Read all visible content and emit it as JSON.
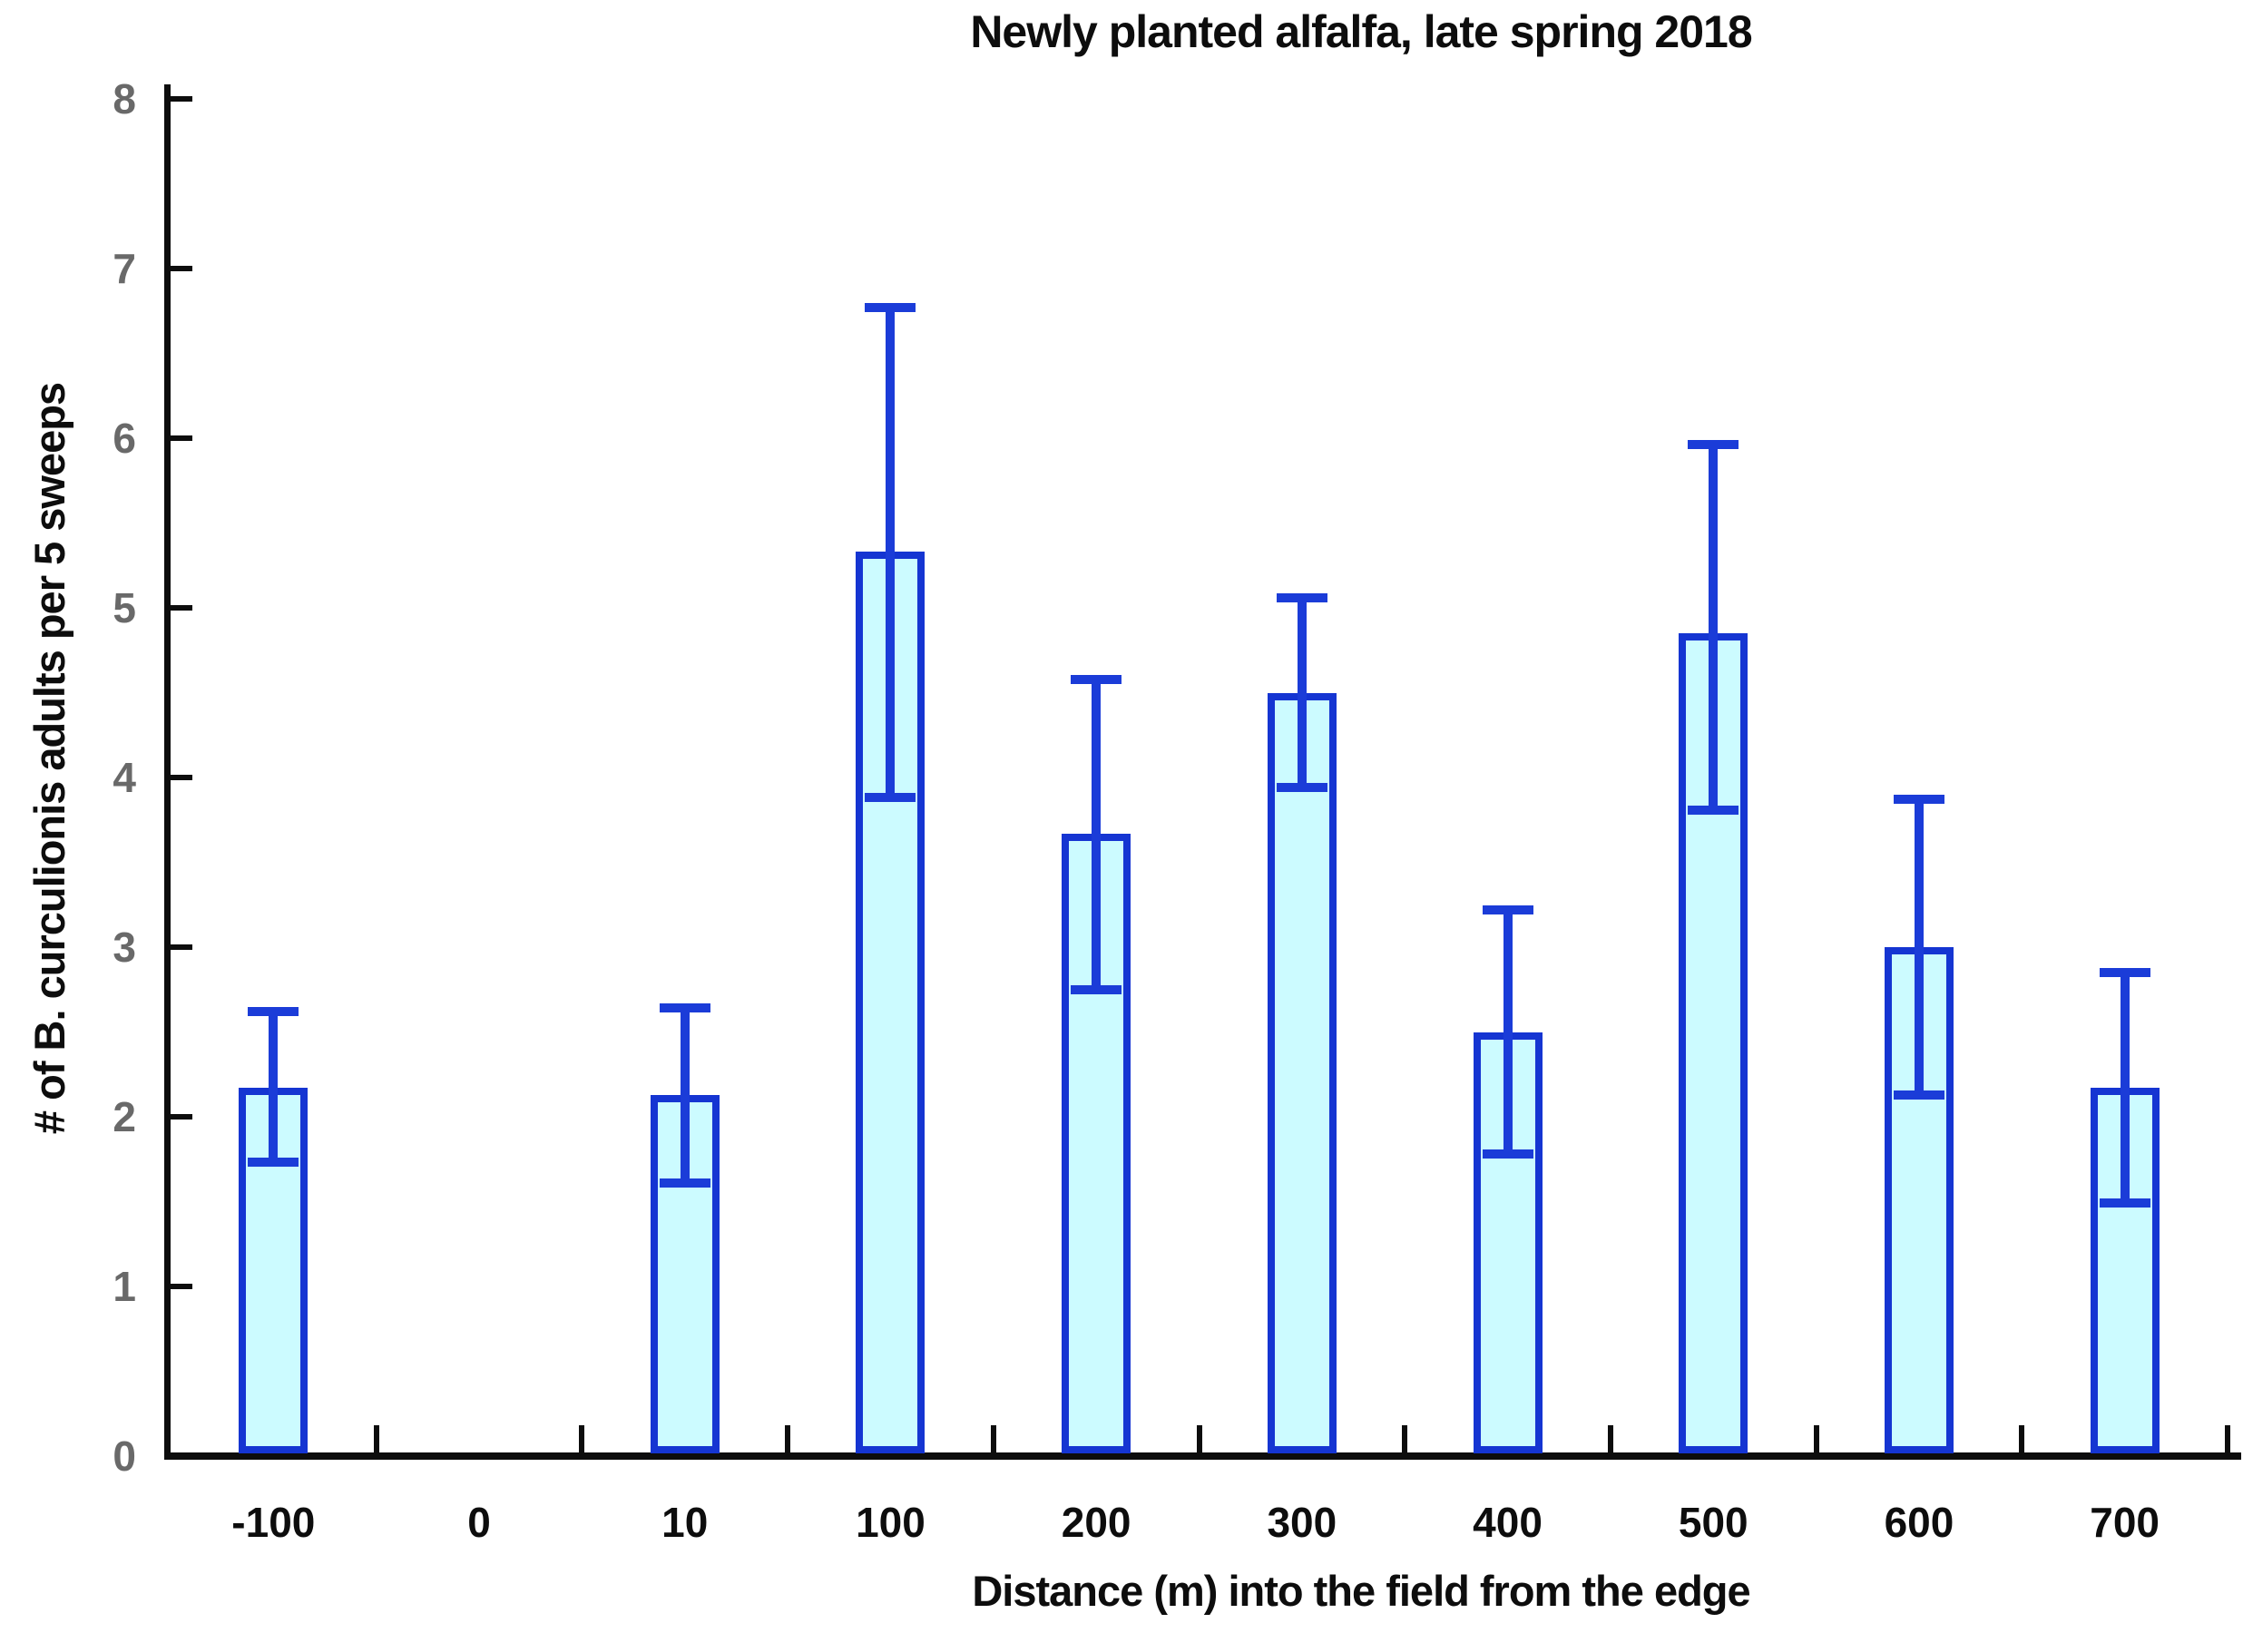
{
  "title": "Newly planted alfalfa, late spring 2018",
  "chart_data": {
    "type": "bar",
    "title": "Newly planted alfalfa, late spring 2018",
    "xlabel": "Distance (m) into the field from the edge",
    "ylabel": "# of B. curculionis adults per 5 sweeps",
    "categories": [
      "-100",
      "0",
      "10",
      "100",
      "200",
      "300",
      "400",
      "500",
      "600",
      "700"
    ],
    "values": [
      2.17,
      0,
      2.13,
      5.33,
      3.67,
      4.5,
      2.5,
      4.85,
      3.0,
      2.17
    ],
    "error_low": [
      1.73,
      null,
      1.61,
      3.88,
      2.75,
      3.94,
      1.78,
      3.81,
      2.13,
      1.49
    ],
    "error_high": [
      2.62,
      null,
      2.64,
      6.77,
      4.58,
      5.06,
      3.22,
      5.96,
      3.87,
      2.85
    ],
    "ylim": [
      0,
      8
    ],
    "yticks": [
      0,
      1,
      2,
      3,
      4,
      5,
      6,
      7,
      8
    ],
    "grid": false,
    "legend": "none",
    "error_bars": "vertical, symmetric caps, both directions",
    "colors": {
      "bar_fill": "#ccfbff",
      "bar_border": "#1535d2",
      "error_bar": "#1b3cd8",
      "axis": "#0d0d0d",
      "ytick_label_color": "#696969",
      "xtick_label_color": "#0d0d0d",
      "background": "#ffffff"
    }
  }
}
